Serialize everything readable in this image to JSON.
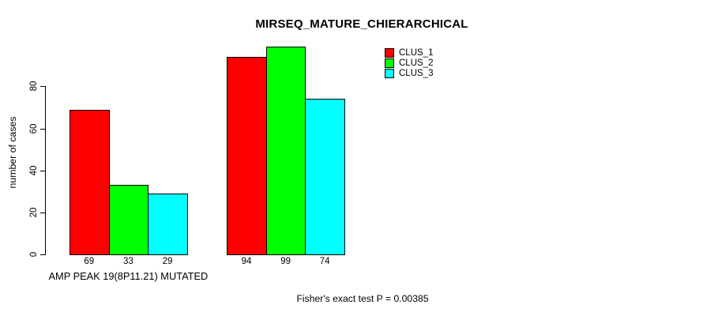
{
  "chart_data": {
    "type": "bar",
    "title": "MIRSEQ_MATURE_CHIERARCHICAL",
    "ylabel": "number of cases",
    "xlabel": "",
    "categories": [
      "AMP PEAK 19(8P11.21) MUTATED",
      ""
    ],
    "series": [
      {
        "name": "CLUS_1",
        "color": "#ff0000",
        "values": [
          69,
          94
        ]
      },
      {
        "name": "CLUS_2",
        "color": "#00ff00",
        "values": [
          33,
          99
        ]
      },
      {
        "name": "CLUS_3",
        "color": "#00ffff",
        "values": [
          29,
          74
        ]
      }
    ],
    "yticks": [
      0,
      20,
      40,
      60,
      80
    ],
    "ylim": [
      0,
      99
    ],
    "show_value_labels": true,
    "value_labels": [
      [
        69,
        33,
        29
      ],
      [
        94,
        99,
        74
      ]
    ],
    "bar_border_color": "#000000",
    "grid": false,
    "legend_position": "top-right"
  },
  "footer": "Fisher's exact test P = 0.00385",
  "colors": {
    "background": "#ffffff",
    "text": "#000000",
    "axis": "#000000"
  }
}
